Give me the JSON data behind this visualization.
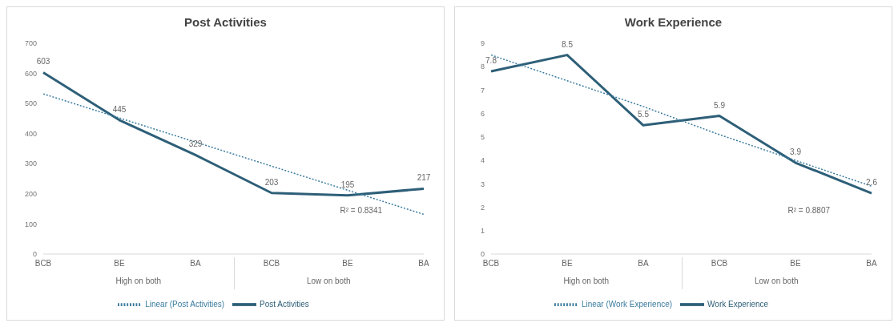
{
  "chart_data": [
    {
      "type": "line",
      "title": "Post Activities",
      "categories": [
        "BCB",
        "BE",
        "BA",
        "BCB",
        "BE",
        "BA"
      ],
      "series": [
        {
          "name": "Post Activities",
          "color": "#2e5f78",
          "values": [
            603,
            445,
            329,
            203,
            195,
            217
          ],
          "value_labels": [
            "603",
            "445",
            "329",
            "203",
            "195",
            "217"
          ]
        },
        {
          "name": "Linear (Post Activities)",
          "color": "#3a7ca0",
          "line_style": "dotted",
          "values": [
            532,
            452,
            372,
            292,
            212,
            132
          ]
        }
      ],
      "ylim": [
        0,
        700
      ],
      "yticks": [
        0,
        100,
        200,
        300,
        400,
        500,
        600,
        700
      ],
      "grid": false,
      "legend": "bottom",
      "marker": "none",
      "annotations": [
        "High on both",
        "Low on both",
        "R² = 0.8341"
      ]
    },
    {
      "type": "line",
      "title": "Work Experience",
      "categories": [
        "BCB",
        "BE",
        "BA",
        "BCB",
        "BE",
        "BA"
      ],
      "series": [
        {
          "name": "Work Experience",
          "color": "#2e5f78",
          "values": [
            7.8,
            8.5,
            5.5,
            5.9,
            3.9,
            2.6
          ],
          "value_labels": [
            "7.8",
            "8.5",
            "5.5",
            "5.9",
            "3.9",
            "2.6"
          ]
        },
        {
          "name": "Linear (Work Experience)",
          "color": "#3a7ca0",
          "line_style": "dotted",
          "values": [
            8.5,
            7.4,
            6.3,
            5.1,
            4.0,
            2.9
          ]
        }
      ],
      "ylim": [
        0,
        9
      ],
      "yticks": [
        0,
        1,
        2,
        3,
        4,
        5,
        6,
        7,
        8,
        9
      ],
      "grid": false,
      "legend": "bottom",
      "marker": "none",
      "annotations": [
        "High on both",
        "Low on both",
        "R² = 0.8807"
      ]
    }
  ]
}
